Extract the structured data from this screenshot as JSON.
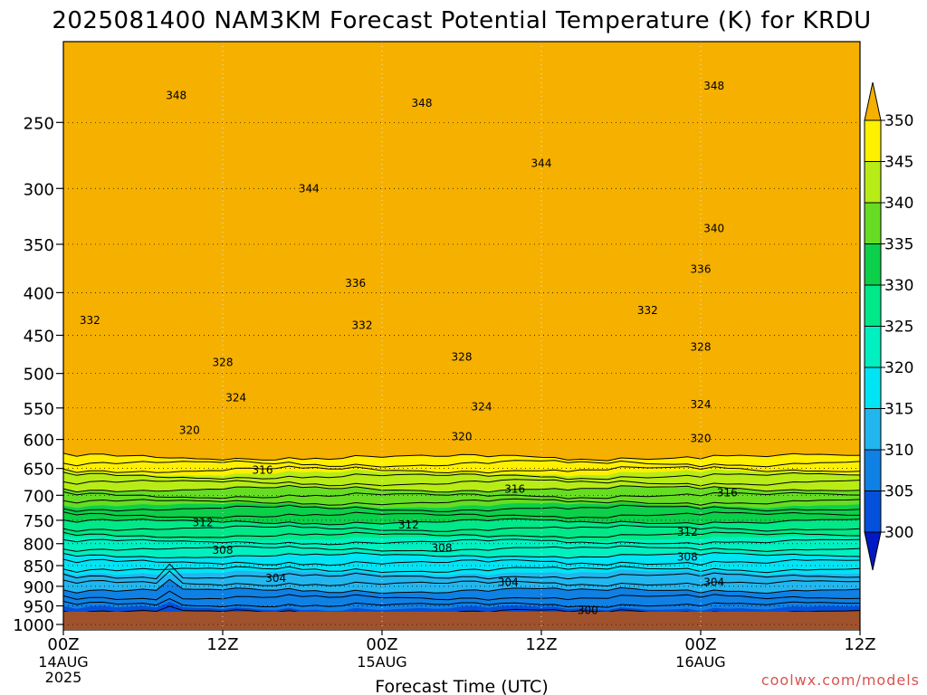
{
  "chart_data": {
    "type": "contour",
    "title": "2025081400 NAM3KM Forecast Potential Temperature (K) for KRDU",
    "xlabel": "Forecast Time (UTC)",
    "x_ticks": [
      {
        "hour": 0,
        "label": "00Z",
        "sub1": "14AUG",
        "sub2": "2025"
      },
      {
        "hour": 12,
        "label": "12Z",
        "sub1": "",
        "sub2": ""
      },
      {
        "hour": 24,
        "label": "00Z",
        "sub1": "15AUG",
        "sub2": ""
      },
      {
        "hour": 36,
        "label": "12Z",
        "sub1": "",
        "sub2": ""
      },
      {
        "hour": 48,
        "label": "00Z",
        "sub1": "16AUG",
        "sub2": ""
      },
      {
        "hour": 60,
        "label": "12Z",
        "sub1": "",
        "sub2": ""
      }
    ],
    "xlim": [
      0,
      60
    ],
    "y_scale": "log",
    "y_ticks": [
      250,
      300,
      350,
      400,
      450,
      500,
      550,
      600,
      650,
      700,
      750,
      800,
      850,
      900,
      950,
      1000
    ],
    "ylim": [
      200,
      1015
    ],
    "surface_pressure": 1000,
    "colorbar": {
      "levels": [
        300,
        305,
        310,
        315,
        320,
        325,
        330,
        335,
        340,
        345,
        350
      ],
      "colors": [
        "#0019c4",
        "#0550da",
        "#0f80e4",
        "#22b6ee",
        "#00e4f4",
        "#00f0c0",
        "#00e888",
        "#0ccf4a",
        "#66dd22",
        "#b8ec16",
        "#fff000",
        "#f5b000"
      ]
    },
    "contour_labels": [
      {
        "value": 348,
        "hour": 8.5,
        "p": 232
      },
      {
        "value": 348,
        "hour": 27,
        "p": 237
      },
      {
        "value": 348,
        "hour": 49,
        "p": 226
      },
      {
        "value": 344,
        "hour": 18.5,
        "p": 300
      },
      {
        "value": 344,
        "hour": 36,
        "p": 280
      },
      {
        "value": 340,
        "hour": 49,
        "p": 335
      },
      {
        "value": 336,
        "hour": 22,
        "p": 390
      },
      {
        "value": 336,
        "hour": 48,
        "p": 375
      },
      {
        "value": 332,
        "hour": 2,
        "p": 432
      },
      {
        "value": 332,
        "hour": 22.5,
        "p": 438
      },
      {
        "value": 332,
        "hour": 44,
        "p": 420
      },
      {
        "value": 328,
        "hour": 12,
        "p": 485
      },
      {
        "value": 328,
        "hour": 30,
        "p": 478
      },
      {
        "value": 328,
        "hour": 48,
        "p": 465
      },
      {
        "value": 324,
        "hour": 13,
        "p": 535
      },
      {
        "value": 324,
        "hour": 31.5,
        "p": 548
      },
      {
        "value": 324,
        "hour": 48,
        "p": 545
      },
      {
        "value": 320,
        "hour": 9.5,
        "p": 585
      },
      {
        "value": 320,
        "hour": 30,
        "p": 595
      },
      {
        "value": 320,
        "hour": 48,
        "p": 598
      },
      {
        "value": 316,
        "hour": 15,
        "p": 653
      },
      {
        "value": 316,
        "hour": 34,
        "p": 688
      },
      {
        "value": 316,
        "hour": 50,
        "p": 695
      },
      {
        "value": 312,
        "hour": 10.5,
        "p": 755
      },
      {
        "value": 312,
        "hour": 26,
        "p": 760
      },
      {
        "value": 312,
        "hour": 47,
        "p": 775
      },
      {
        "value": 308,
        "hour": 12,
        "p": 815
      },
      {
        "value": 308,
        "hour": 28.5,
        "p": 810
      },
      {
        "value": 308,
        "hour": 47,
        "p": 830
      },
      {
        "value": 304,
        "hour": 16,
        "p": 880
      },
      {
        "value": 304,
        "hour": 33.5,
        "p": 890
      },
      {
        "value": 304,
        "hour": 49,
        "p": 890
      },
      {
        "value": 300,
        "hour": 39.5,
        "p": 962
      }
    ],
    "credit": "coolwx.com/models"
  }
}
